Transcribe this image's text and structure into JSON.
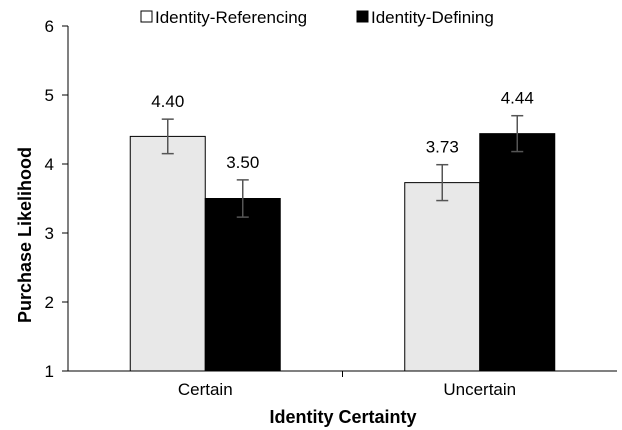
{
  "chart_data": {
    "type": "bar",
    "categories": [
      "Certain",
      "Uncertain"
    ],
    "series": [
      {
        "name": "Identity-Referencing",
        "values": [
          4.4,
          3.73
        ],
        "value_labels": [
          "4.40",
          "3.73"
        ],
        "error": [
          0.25,
          0.26
        ],
        "color": "#e8e8e8",
        "stroke": "#000000"
      },
      {
        "name": "Identity-Defining",
        "values": [
          3.5,
          4.44
        ],
        "value_labels": [
          "3.50",
          "4.44"
        ],
        "error": [
          0.27,
          0.26
        ],
        "color": "#000000",
        "stroke": "#000000"
      }
    ],
    "xlabel": "Identity Certainty",
    "ylabel": "Purchase Likelihood",
    "ylim": [
      1,
      6
    ],
    "yticks": [
      "1",
      "2",
      "3",
      "4",
      "5",
      "6"
    ],
    "grid": false,
    "legend_position": "top-center"
  }
}
